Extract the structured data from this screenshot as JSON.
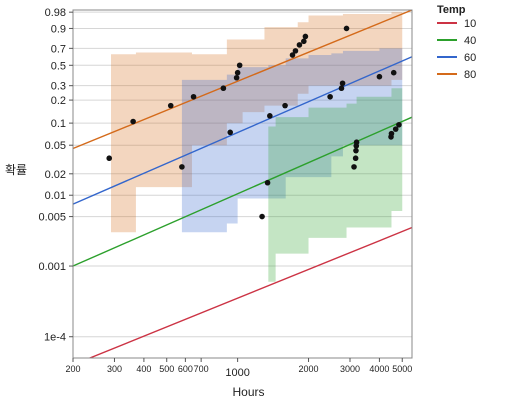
{
  "chart_data": {
    "type": "scatter",
    "xlabel": "Hours",
    "ylabel": "확률",
    "x_scale": "log",
    "y_scale": "weibull-probability",
    "xlim": [
      200,
      5500
    ],
    "ylim": [
      5e-05,
      0.985
    ],
    "x_ticks": [
      200,
      300,
      400,
      500,
      600,
      700,
      1000,
      2000,
      3000,
      4000,
      5000
    ],
    "x_tick_labels": [
      "200",
      "300",
      "400",
      "500",
      "600",
      "700",
      "1000",
      "2000",
      "3000",
      "4000",
      "5000"
    ],
    "y_ticks": [
      0.0001,
      0.001,
      0.005,
      0.01,
      0.02,
      0.05,
      0.1,
      0.2,
      0.3,
      0.5,
      0.7,
      0.9,
      0.98
    ],
    "y_tick_labels": [
      "1e-4",
      "0.001",
      "0.005",
      "0.01",
      "0.02",
      "0.05",
      "0.1",
      "0.2",
      "0.3",
      "0.5",
      "0.7",
      "0.9",
      "0.98"
    ],
    "grid": true,
    "legend": {
      "title": "Temp",
      "position": "right",
      "items": [
        "10",
        "40",
        "60",
        "80"
      ]
    },
    "colors": {
      "10": "#cc3344",
      "40": "#2ca02c",
      "60": "#3366cc",
      "80": "#d46a1a"
    },
    "fit_lines": [
      {
        "name": "10",
        "points": [
          [
            200,
            4e-05
          ],
          [
            5500,
            0.0035
          ]
        ]
      },
      {
        "name": "40",
        "points": [
          [
            200,
            0.001
          ],
          [
            5500,
            0.12
          ]
        ]
      },
      {
        "name": "60",
        "points": [
          [
            200,
            0.0075
          ],
          [
            5500,
            0.6
          ]
        ]
      },
      {
        "name": "80",
        "points": [
          [
            200,
            0.045
          ],
          [
            5500,
            0.985
          ]
        ]
      }
    ],
    "confidence_bands": [
      {
        "name": "80",
        "x": [
          290,
          370,
          520,
          640,
          900,
          1050,
          1300,
          1800,
          2000,
          2800,
          4500,
          5000
        ],
        "upper": [
          0.63,
          0.65,
          0.65,
          0.63,
          0.8,
          0.8,
          0.91,
          0.94,
          0.97,
          0.975,
          0.98,
          0.98
        ],
        "lower": [
          0.003,
          0.013,
          0.013,
          0.05,
          0.1,
          0.14,
          0.17,
          0.24,
          0.3,
          0.3,
          0.35,
          0.4
        ]
      },
      {
        "name": "60",
        "x": [
          580,
          700,
          900,
          1000,
          1350,
          1600,
          2000,
          2500,
          2800,
          4000,
          5000
        ],
        "upper": [
          0.35,
          0.35,
          0.4,
          0.48,
          0.5,
          0.58,
          0.62,
          0.64,
          0.67,
          0.7,
          0.78
        ],
        "lower": [
          0.003,
          0.003,
          0.004,
          0.009,
          0.009,
          0.018,
          0.018,
          0.035,
          0.05,
          0.05,
          0.1
        ]
      },
      {
        "name": "40",
        "x": [
          1350,
          1450,
          2000,
          2900,
          3200,
          4500,
          5000
        ],
        "upper": [
          0.09,
          0.12,
          0.16,
          0.18,
          0.22,
          0.28,
          0.45
        ],
        "lower": [
          0.0006,
          0.0015,
          0.0025,
          0.0035,
          0.0035,
          0.006,
          0.009
        ]
      }
    ],
    "series": [
      {
        "name": "80",
        "x": [
          285,
          360,
          520,
          650,
          870,
          990,
          1000,
          1020,
          1710,
          1760,
          1830,
          1910,
          1940,
          2900
        ],
        "y": [
          0.033,
          0.105,
          0.17,
          0.22,
          0.28,
          0.37,
          0.42,
          0.5,
          0.62,
          0.67,
          0.74,
          0.78,
          0.83,
          0.9
        ]
      },
      {
        "name": "60",
        "x": [
          580,
          930,
          1370,
          1590,
          2470,
          2760,
          2790,
          4000,
          4600
        ],
        "y": [
          0.025,
          0.075,
          0.125,
          0.17,
          0.22,
          0.28,
          0.32,
          0.38,
          0.42
        ]
      },
      {
        "name": "40",
        "x": [
          1270,
          1340,
          3120,
          3170,
          3180,
          3190,
          3200,
          4480,
          4500,
          4690,
          4840
        ],
        "y": [
          0.005,
          0.015,
          0.025,
          0.033,
          0.042,
          0.049,
          0.055,
          0.065,
          0.072,
          0.083,
          0.095
        ]
      },
      {
        "name": "10",
        "x": [],
        "y": []
      }
    ]
  }
}
